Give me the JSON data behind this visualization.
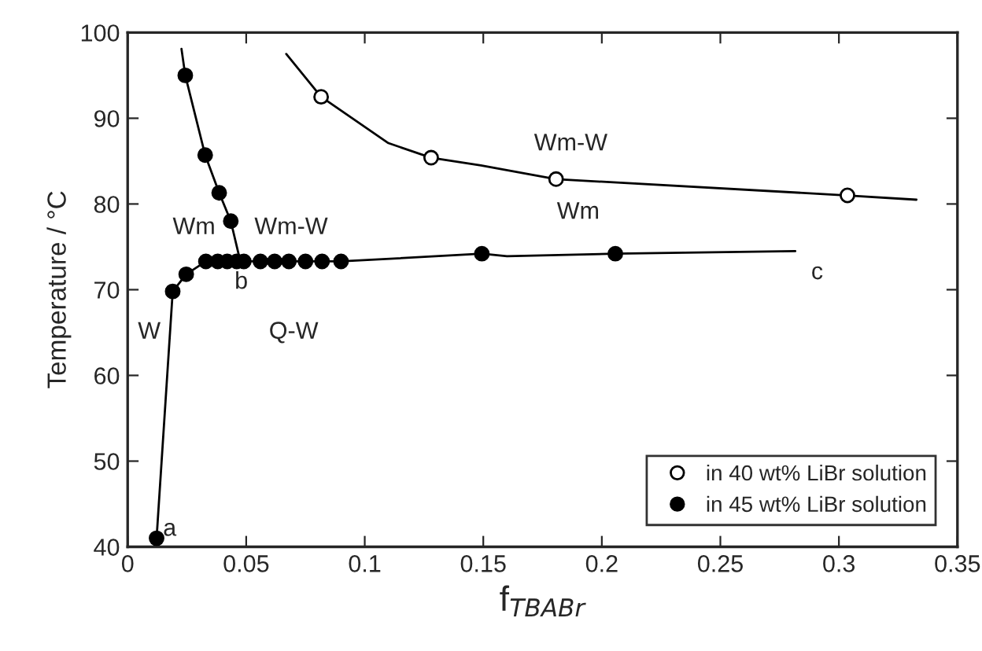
{
  "chart_data": {
    "type": "scatter",
    "xlabel": "f$_{TBABr}$",
    "ylabel": "Temperature / °C",
    "xlim": [
      0,
      0.35
    ],
    "ylim": [
      40,
      100
    ],
    "xticks": [
      0,
      0.05,
      0.1,
      0.15,
      0.2,
      0.25,
      0.3,
      0.35
    ],
    "yticks": [
      40,
      50,
      60,
      70,
      80,
      90,
      100
    ],
    "grid": false,
    "legend": "bottom right",
    "series": [
      {
        "type": "line",
        "color": "#000000",
        "marker": "none",
        "x": [
          0.0669,
          0.0816,
          0.11,
          0.128,
          0.149,
          0.1807,
          0.3036,
          0.3327
        ],
        "values": [
          97.5,
          92.5,
          87.1,
          85.4,
          84.5,
          82.9,
          81.0,
          80.5
        ]
      },
      {
        "type": "line",
        "color": "#000000",
        "marker": "none",
        "x": [
          0.0227,
          0.0243,
          0.0327,
          0.0386,
          0.0435,
          0.047
        ],
        "values": [
          98.1,
          95.0,
          85.7,
          81.3,
          78.0,
          73.9
        ]
      },
      {
        "type": "line",
        "color": "#000000",
        "marker": "none",
        "x": [
          0.0122,
          0.019,
          0.0247,
          0.033,
          0.09,
          0.1494,
          0.16,
          0.2057,
          0.2816
        ],
        "values": [
          41.0,
          69.8,
          71.8,
          73.3,
          73.3,
          74.2,
          73.9,
          74.2,
          74.5
        ]
      },
      {
        "name": "in 40 wt% LiBr solution",
        "color": "#ffffff",
        "marker": "circle",
        "x": [
          0.0816,
          0.128,
          0.1807,
          0.3036
        ],
        "values": [
          92.5,
          85.4,
          82.9,
          81.0
        ]
      },
      {
        "name": "in 45 wt% LiBr solution",
        "color": "#000000",
        "marker": "circle",
        "x": [
          0.0122,
          0.019,
          0.0247,
          0.0243,
          0.0327,
          0.0386,
          0.0435,
          0.033,
          0.038,
          0.042,
          0.046,
          0.049,
          0.056,
          0.062,
          0.068,
          0.075,
          0.082,
          0.09,
          0.1494,
          0.2057
        ],
        "values": [
          41.0,
          69.8,
          71.8,
          95.0,
          85.7,
          81.3,
          78.0,
          73.3,
          73.3,
          73.3,
          73.3,
          73.3,
          73.3,
          73.3,
          73.3,
          73.3,
          73.3,
          73.3,
          74.2,
          74.2
        ]
      }
    ],
    "annotations": [
      {
        "text": "a",
        "x": 0.0122,
        "y": 41.0
      },
      {
        "text": "b",
        "x": 0.047,
        "y": 73.9
      },
      {
        "text": "c",
        "x": 0.2816,
        "y": 74.5
      },
      "W",
      "Wm",
      "Wm-W",
      "Q-W",
      "Wm-W",
      "Wm"
    ]
  }
}
